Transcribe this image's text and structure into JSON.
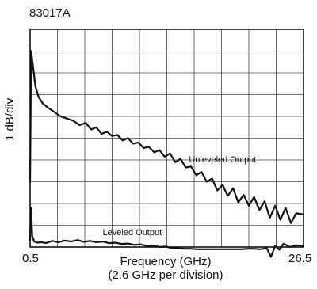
{
  "chart_data": {
    "type": "line",
    "title": "83017A",
    "ylabel": "1 dB/div",
    "xlabel": "Frequency (GHz)",
    "xlabel_sub": "(2.6 GHz per division)",
    "xlim": [
      0.5,
      26.5
    ],
    "x_tick_labels": [
      "0.5",
      "26.5"
    ],
    "ylim": [
      0,
      10
    ],
    "grid": true,
    "series": [
      {
        "name": "Unleveled Output",
        "x": [
          0.5,
          0.6,
          0.8,
          1.0,
          1.3,
          1.7,
          2.2,
          2.8,
          3.4,
          4.0,
          4.6,
          5.2,
          5.8,
          6.3,
          6.8,
          7.3,
          7.8,
          8.3,
          8.8,
          9.3,
          9.8,
          10.3,
          10.8,
          11.3,
          11.8,
          12.3,
          12.8,
          13.3,
          13.8,
          14.3,
          14.8,
          15.3,
          15.8,
          16.3,
          16.8,
          17.3,
          17.8,
          18.3,
          18.8,
          19.3,
          19.8,
          20.3,
          20.8,
          21.3,
          21.8,
          22.3,
          22.8,
          23.3,
          23.8,
          24.3,
          24.8,
          25.3,
          25.8,
          26.5
        ],
        "y": [
          3.0,
          9.0,
          8.2,
          7.4,
          6.9,
          6.6,
          6.4,
          6.2,
          6.0,
          5.9,
          5.8,
          5.6,
          5.7,
          5.4,
          5.5,
          5.2,
          5.3,
          5.1,
          5.15,
          4.9,
          5.0,
          4.75,
          4.8,
          4.55,
          4.6,
          4.35,
          4.45,
          4.15,
          4.3,
          3.9,
          4.05,
          3.65,
          3.7,
          3.3,
          3.45,
          3.0,
          3.15,
          2.6,
          2.85,
          2.35,
          2.7,
          2.05,
          2.4,
          1.9,
          2.3,
          1.7,
          2.1,
          1.35,
          1.9,
          1.25,
          1.8,
          1.1,
          1.55,
          1.5
        ]
      },
      {
        "name": "Leveled Output",
        "x": [
          0.5,
          0.58,
          0.7,
          0.9,
          1.2,
          1.6,
          2.0,
          2.6,
          3.2,
          3.8,
          4.4,
          5.0,
          5.6,
          6.2,
          6.8,
          7.4,
          8.0,
          8.6,
          9.2,
          9.8,
          10.4,
          11.0,
          11.6,
          12.2,
          12.8,
          13.4,
          14.0,
          14.6,
          15.2,
          15.8,
          16.4,
          17.0,
          17.6,
          18.2,
          18.8,
          19.4,
          20.0,
          20.6,
          21.2,
          21.8,
          22.4,
          23.0,
          23.4,
          23.8,
          24.2,
          24.6,
          25.2,
          25.8,
          26.5
        ],
        "y": [
          0.3,
          1.8,
          0.5,
          0.25,
          0.2,
          0.22,
          0.18,
          0.28,
          0.22,
          0.3,
          0.25,
          0.32,
          0.24,
          0.28,
          0.22,
          0.25,
          0.18,
          0.2,
          0.14,
          0.16,
          0.1,
          0.12,
          0.05,
          0.07,
          0.0,
          0.02,
          -0.05,
          -0.06,
          -0.08,
          -0.08,
          -0.1,
          -0.1,
          -0.1,
          -0.1,
          -0.1,
          -0.1,
          -0.1,
          -0.1,
          -0.08,
          -0.08,
          -0.1,
          -0.05,
          -0.45,
          0.05,
          -0.12,
          0.15,
          0.0,
          0.08,
          0.05
        ]
      }
    ],
    "annotations": [
      {
        "text": "Unleveled Output",
        "x": 15.6,
        "y": 3.9
      },
      {
        "text": "Leveled Output",
        "x": 7.4,
        "y": 0.55
      }
    ]
  }
}
